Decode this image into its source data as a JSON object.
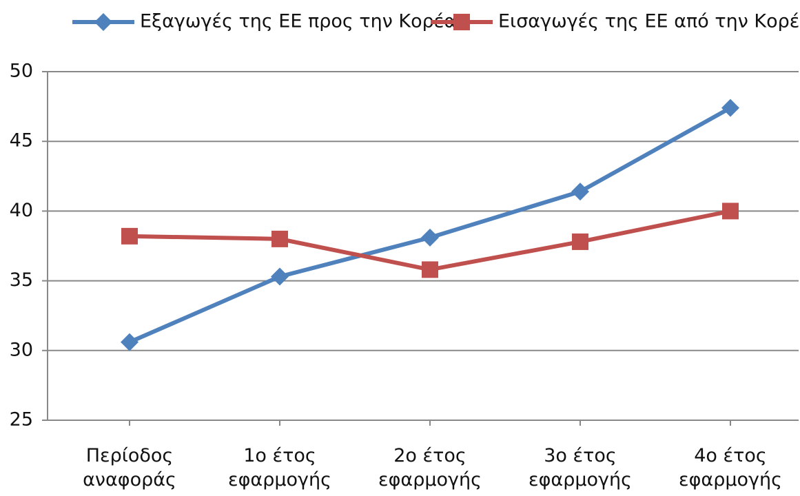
{
  "chart_data": {
    "type": "line",
    "categories": [
      "Περίοδος\nαναφοράς",
      "1ο έτος\nεφαρμογής",
      "2ο έτος\nεφαρμογής",
      "3ο έτος\nεφαρμογής",
      "4ο έτος\nεφαρμογής"
    ],
    "series": [
      {
        "name": "Εξαγωγές της ΕΕ προς την Κορέα",
        "color": "#4f81bd",
        "marker": "diamond",
        "values": [
          30.6,
          35.3,
          38.1,
          41.4,
          47.4
        ]
      },
      {
        "name": "Εισαγωγές της ΕΕ από την Κορέα",
        "color": "#c0504d",
        "marker": "square",
        "values": [
          38.2,
          38.0,
          35.8,
          37.8,
          40.0
        ]
      }
    ],
    "ylim": [
      25,
      50
    ],
    "yticks": [
      25,
      30,
      35,
      40,
      45,
      50
    ],
    "grid": true,
    "legend": "top"
  }
}
